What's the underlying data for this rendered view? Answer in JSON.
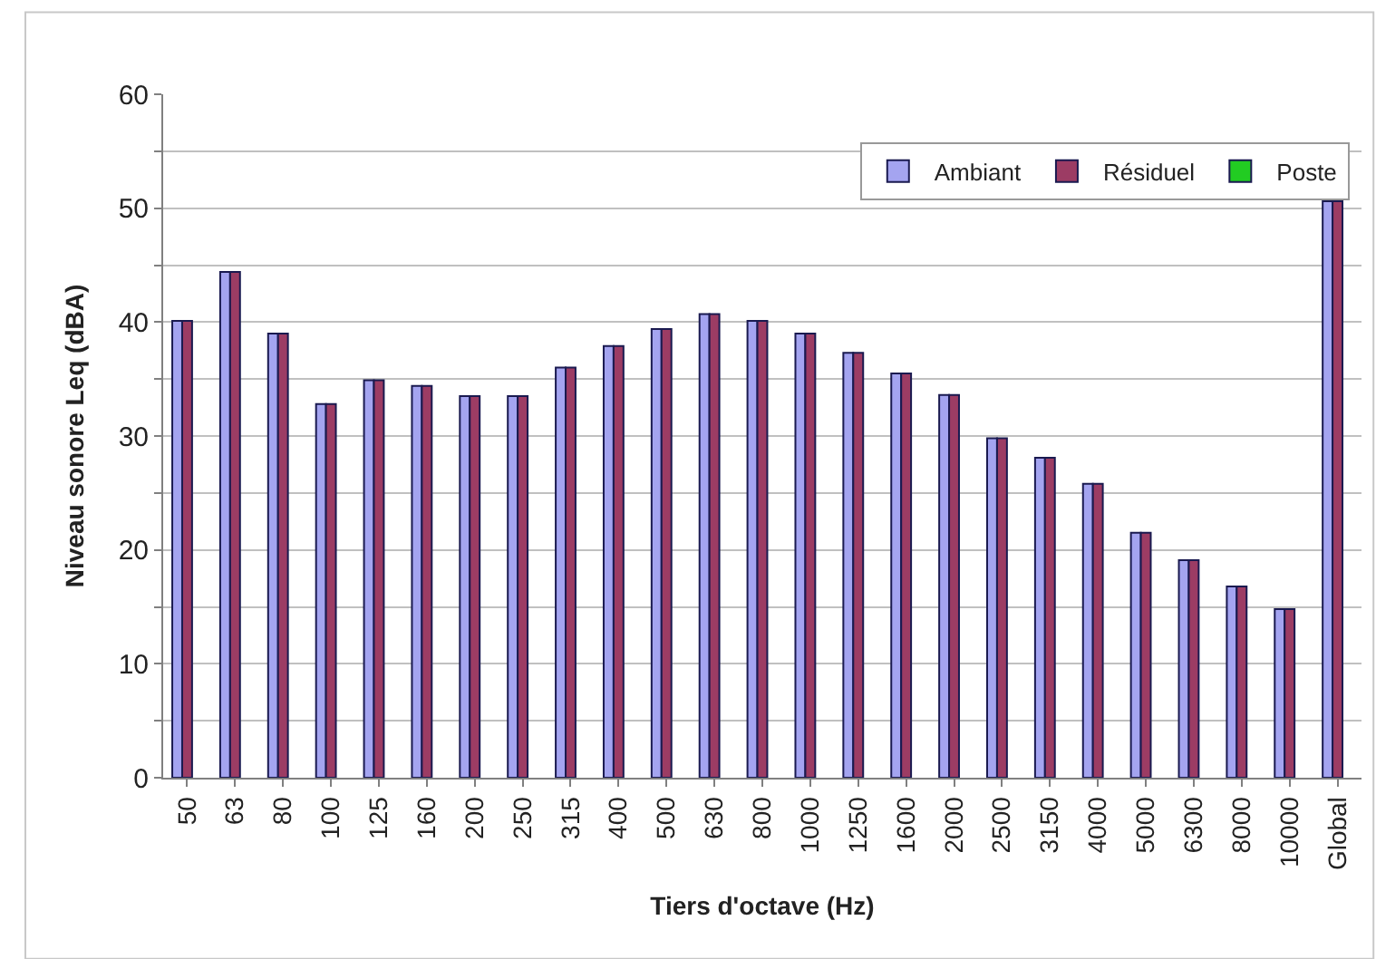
{
  "chart_data": {
    "type": "bar",
    "xlabel": "Tiers d'octave (Hz)",
    "ylabel": "Niveau sonore Leq (dBA)",
    "categories": [
      "50",
      "63",
      "80",
      "100",
      "125",
      "160",
      "200",
      "250",
      "315",
      "400",
      "500",
      "630",
      "800",
      "1000",
      "1250",
      "1600",
      "2000",
      "2500",
      "3150",
      "4000",
      "5000",
      "6300",
      "8000",
      "10000",
      "Global"
    ],
    "series": [
      {
        "name": "Ambiant",
        "color": "#a4a4f0",
        "values": [
          40.1,
          44.4,
          39.0,
          32.8,
          34.9,
          34.4,
          33.5,
          33.5,
          36.0,
          37.9,
          39.4,
          40.7,
          40.1,
          39.0,
          37.3,
          35.5,
          33.6,
          29.8,
          28.1,
          25.8,
          21.5,
          19.1,
          16.8,
          14.8,
          50.6
        ]
      },
      {
        "name": "Résiduel",
        "color": "#9c3c64",
        "values": [
          40.1,
          44.4,
          39.0,
          32.8,
          34.9,
          34.4,
          33.5,
          33.5,
          36.0,
          37.9,
          39.4,
          40.7,
          40.1,
          39.0,
          37.3,
          35.5,
          33.6,
          29.8,
          28.1,
          25.8,
          21.5,
          19.1,
          16.8,
          14.8,
          50.6
        ]
      },
      {
        "name": "Poste",
        "color": "#22cc22",
        "values": [
          null,
          null,
          null,
          null,
          null,
          null,
          null,
          null,
          null,
          null,
          null,
          null,
          null,
          null,
          null,
          null,
          null,
          null,
          null,
          null,
          null,
          null,
          null,
          null,
          null
        ]
      }
    ],
    "ylim": [
      0,
      60
    ],
    "yticks": [
      0,
      {
        "value": 5,
        "label": null
      },
      10,
      {
        "value": 15,
        "label": null
      },
      20,
      {
        "value": 25,
        "label": null
      },
      30,
      {
        "value": 35,
        "label": null
      },
      40,
      {
        "value": 45,
        "label": null
      },
      50,
      {
        "value": 55,
        "label": null
      },
      60
    ],
    "grid": "y",
    "legend": "top right"
  }
}
